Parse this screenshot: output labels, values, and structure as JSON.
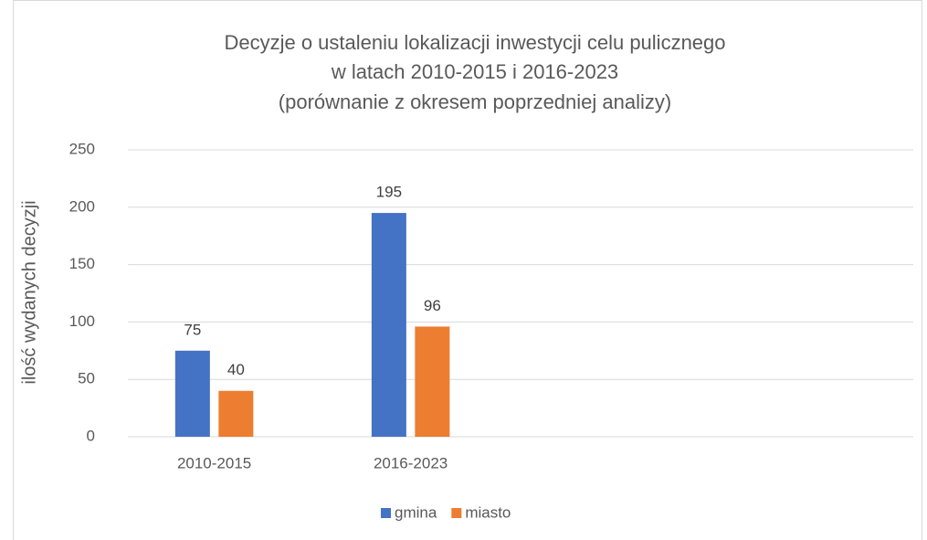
{
  "chart_data": {
    "type": "bar",
    "title": [
      "Decyzje o ustaleniu lokalizacji inwestycji celu pulicznego",
      "w latach 2010-2015 i 2016-2023",
      "(porównanie z okresem poprzedniej analizy)"
    ],
    "ylabel": "ilość wydanych decyzji",
    "categories": [
      "2010-2015",
      "2016-2023",
      null,
      null
    ],
    "series": [
      {
        "name": "gmina",
        "color": "#4472c4",
        "values": [
          75,
          195,
          null,
          null
        ]
      },
      {
        "name": "miasto",
        "color": "#ed7d31",
        "values": [
          40,
          96,
          null,
          null
        ]
      }
    ],
    "ylim": [
      0,
      250
    ],
    "yticks": [
      0,
      50,
      100,
      150,
      200,
      250
    ],
    "grid": true,
    "legend": "bottom"
  }
}
